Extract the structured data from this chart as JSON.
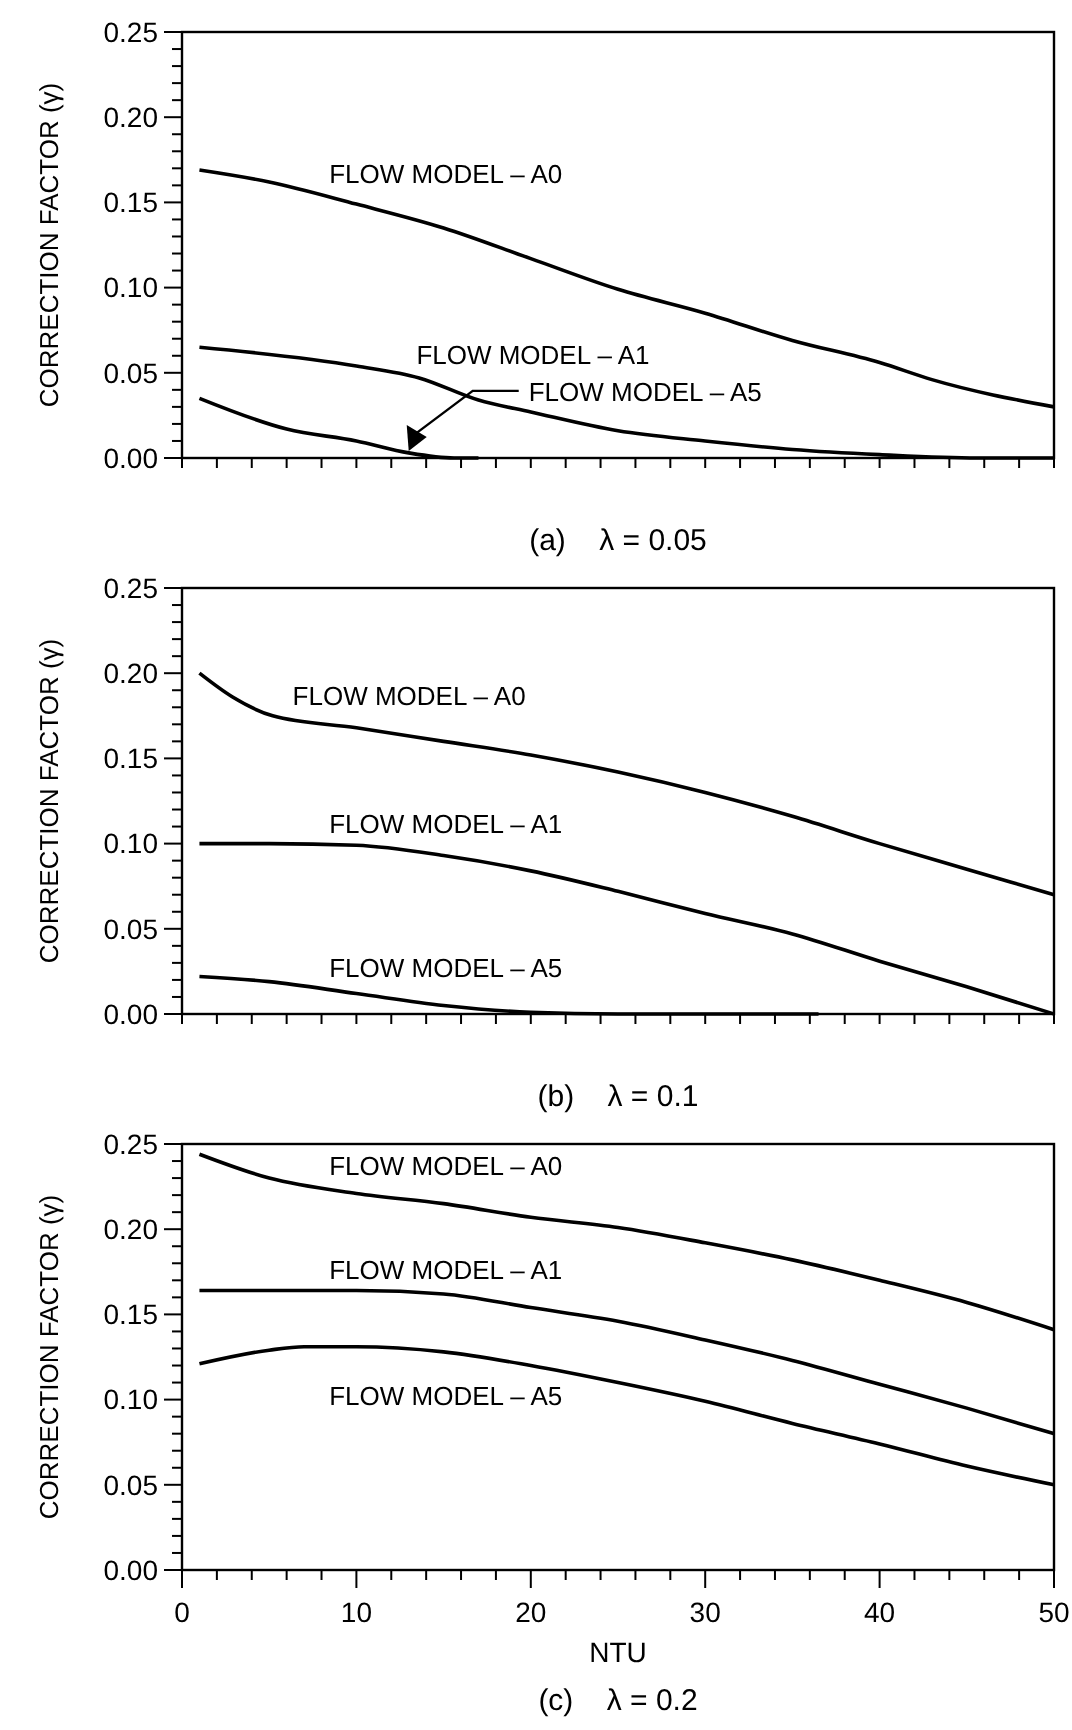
{
  "chart_data": [
    {
      "type": "line",
      "title": "(a)    λ = 0.05",
      "ylabel": "CORRECTION FACTOR (γ)",
      "xlim": [
        0,
        50
      ],
      "ylim": [
        0,
        0.25
      ],
      "tick_labels": "y",
      "line_style": "solid",
      "marker": "none",
      "xticks": [
        {
          "value": 0,
          "label": null
        },
        {
          "value": 2,
          "label": null
        },
        {
          "value": 4,
          "label": null
        },
        {
          "value": 6,
          "label": null
        },
        {
          "value": 8,
          "label": null
        },
        {
          "value": 10,
          "label": null
        },
        {
          "value": 12,
          "label": null
        },
        {
          "value": 14,
          "label": null
        },
        {
          "value": 16,
          "label": null
        },
        {
          "value": 18,
          "label": null
        },
        {
          "value": 20,
          "label": null
        },
        {
          "value": 22,
          "label": null
        },
        {
          "value": 24,
          "label": null
        },
        {
          "value": 26,
          "label": null
        },
        {
          "value": 28,
          "label": null
        },
        {
          "value": 30,
          "label": null
        },
        {
          "value": 32,
          "label": null
        },
        {
          "value": 34,
          "label": null
        },
        {
          "value": 36,
          "label": null
        },
        {
          "value": 38,
          "label": null
        },
        {
          "value": 40,
          "label": null
        },
        {
          "value": 42,
          "label": null
        },
        {
          "value": 44,
          "label": null
        },
        {
          "value": 46,
          "label": null
        },
        {
          "value": 48,
          "label": null
        },
        {
          "value": 50,
          "label": null
        }
      ],
      "yticks": [
        {
          "value": 0,
          "label": "0.00"
        },
        {
          "value": 0.01,
          "label": null
        },
        {
          "value": 0.02,
          "label": null
        },
        {
          "value": 0.03,
          "label": null
        },
        {
          "value": 0.04,
          "label": null
        },
        {
          "value": 0.05,
          "label": "0.05"
        },
        {
          "value": 0.06,
          "label": null
        },
        {
          "value": 0.07,
          "label": null
        },
        {
          "value": 0.08,
          "label": null
        },
        {
          "value": 0.09,
          "label": null
        },
        {
          "value": 0.1,
          "label": "0.10"
        },
        {
          "value": 0.11,
          "label": null
        },
        {
          "value": 0.12,
          "label": null
        },
        {
          "value": 0.13,
          "label": null
        },
        {
          "value": 0.14,
          "label": null
        },
        {
          "value": 0.15,
          "label": "0.15"
        },
        {
          "value": 0.16,
          "label": null
        },
        {
          "value": 0.17,
          "label": null
        },
        {
          "value": 0.18,
          "label": null
        },
        {
          "value": 0.19,
          "label": null
        },
        {
          "value": 0.2,
          "label": "0.20"
        },
        {
          "value": 0.21,
          "label": null
        },
        {
          "value": 0.22,
          "label": null
        },
        {
          "value": 0.23,
          "label": null
        },
        {
          "value": 0.24,
          "label": null
        },
        {
          "value": 0.25,
          "label": "0.25"
        }
      ],
      "series": [
        {
          "name": "FLOW MODEL – A0",
          "color": "#000000",
          "x": [
            1,
            5,
            10,
            15,
            20,
            25,
            30,
            35,
            40,
            43,
            50
          ],
          "values": [
            0.169,
            0.162,
            0.149,
            0.135,
            0.117,
            0.099,
            0.085,
            0.069,
            0.056,
            0.046,
            0.03
          ]
        },
        {
          "name": "FLOW MODEL – A1",
          "color": "#000000",
          "x": [
            1,
            10,
            13.6,
            17,
            20,
            25,
            30,
            35,
            40,
            45.6,
            50
          ],
          "values": [
            0.065,
            0.054,
            0.047,
            0.034,
            0.027,
            0.016,
            0.01,
            0.005,
            0.002,
            0,
            0
          ]
        },
        {
          "name": "FLOW MODEL – A5",
          "color": "#000000",
          "x": [
            1,
            6,
            10,
            13,
            15.6,
            17
          ],
          "values": [
            0.035,
            0.017,
            0.01,
            0.003,
            0,
            0
          ]
        }
      ]
    },
    {
      "type": "line",
      "title": "(b)    λ = 0.1",
      "ylabel": "CORRECTION FACTOR (γ)",
      "xlim": [
        0,
        50
      ],
      "ylim": [
        0,
        0.25
      ],
      "tick_labels": "y",
      "line_style": "solid",
      "marker": "none",
      "xticks": [
        {
          "value": 0,
          "label": null
        },
        {
          "value": 2,
          "label": null
        },
        {
          "value": 4,
          "label": null
        },
        {
          "value": 6,
          "label": null
        },
        {
          "value": 8,
          "label": null
        },
        {
          "value": 10,
          "label": null
        },
        {
          "value": 12,
          "label": null
        },
        {
          "value": 14,
          "label": null
        },
        {
          "value": 16,
          "label": null
        },
        {
          "value": 18,
          "label": null
        },
        {
          "value": 20,
          "label": null
        },
        {
          "value": 22,
          "label": null
        },
        {
          "value": 24,
          "label": null
        },
        {
          "value": 26,
          "label": null
        },
        {
          "value": 28,
          "label": null
        },
        {
          "value": 30,
          "label": null
        },
        {
          "value": 32,
          "label": null
        },
        {
          "value": 34,
          "label": null
        },
        {
          "value": 36,
          "label": null
        },
        {
          "value": 38,
          "label": null
        },
        {
          "value": 40,
          "label": null
        },
        {
          "value": 42,
          "label": null
        },
        {
          "value": 44,
          "label": null
        },
        {
          "value": 46,
          "label": null
        },
        {
          "value": 48,
          "label": null
        },
        {
          "value": 50,
          "label": null
        }
      ],
      "yticks": [
        {
          "value": 0,
          "label": "0.00"
        },
        {
          "value": 0.01,
          "label": null
        },
        {
          "value": 0.02,
          "label": null
        },
        {
          "value": 0.03,
          "label": null
        },
        {
          "value": 0.04,
          "label": null
        },
        {
          "value": 0.05,
          "label": "0.05"
        },
        {
          "value": 0.06,
          "label": null
        },
        {
          "value": 0.07,
          "label": null
        },
        {
          "value": 0.08,
          "label": null
        },
        {
          "value": 0.09,
          "label": null
        },
        {
          "value": 0.1,
          "label": "0.10"
        },
        {
          "value": 0.11,
          "label": null
        },
        {
          "value": 0.12,
          "label": null
        },
        {
          "value": 0.13,
          "label": null
        },
        {
          "value": 0.14,
          "label": null
        },
        {
          "value": 0.15,
          "label": "0.15"
        },
        {
          "value": 0.16,
          "label": null
        },
        {
          "value": 0.17,
          "label": null
        },
        {
          "value": 0.18,
          "label": null
        },
        {
          "value": 0.19,
          "label": null
        },
        {
          "value": 0.2,
          "label": "0.20"
        },
        {
          "value": 0.21,
          "label": null
        },
        {
          "value": 0.22,
          "label": null
        },
        {
          "value": 0.23,
          "label": null
        },
        {
          "value": 0.24,
          "label": null
        },
        {
          "value": 0.25,
          "label": "0.25"
        }
      ],
      "series": [
        {
          "name": "FLOW MODEL – A0",
          "color": "#000000",
          "x": [
            1,
            2.9,
            5.2,
            10,
            15,
            20,
            25,
            30,
            35,
            40,
            45,
            50
          ],
          "values": [
            0.2,
            0.186,
            0.175,
            0.168,
            0.16,
            0.152,
            0.142,
            0.13,
            0.116,
            0.1,
            0.085,
            0.07
          ]
        },
        {
          "name": "FLOW MODEL – A1",
          "color": "#000000",
          "x": [
            1,
            5,
            10,
            15,
            20,
            25,
            30,
            35,
            40,
            45,
            50
          ],
          "values": [
            0.1,
            0.1,
            0.099,
            0.093,
            0.084,
            0.072,
            0.059,
            0.047,
            0.031,
            0.016,
            0
          ]
        },
        {
          "name": "FLOW MODEL – A5",
          "color": "#000000",
          "x": [
            1,
            5,
            10,
            15,
            20,
            25,
            30,
            36.5
          ],
          "values": [
            0.022,
            0.019,
            0.012,
            0.005,
            0.001,
            0,
            0,
            0
          ]
        }
      ]
    },
    {
      "type": "line",
      "title": "(c)    λ = 0.2",
      "xlabel": "NTU",
      "ylabel": "CORRECTION FACTOR (γ)",
      "xlim": [
        0,
        50
      ],
      "ylim": [
        0,
        0.25
      ],
      "line_style": "solid",
      "marker": "none",
      "xticks": [
        {
          "value": 0,
          "label": "0"
        },
        {
          "value": 2,
          "label": null
        },
        {
          "value": 4,
          "label": null
        },
        {
          "value": 6,
          "label": null
        },
        {
          "value": 8,
          "label": null
        },
        {
          "value": 10,
          "label": "10"
        },
        {
          "value": 12,
          "label": null
        },
        {
          "value": 14,
          "label": null
        },
        {
          "value": 16,
          "label": null
        },
        {
          "value": 18,
          "label": null
        },
        {
          "value": 20,
          "label": "20"
        },
        {
          "value": 22,
          "label": null
        },
        {
          "value": 24,
          "label": null
        },
        {
          "value": 26,
          "label": null
        },
        {
          "value": 28,
          "label": null
        },
        {
          "value": 30,
          "label": "30"
        },
        {
          "value": 32,
          "label": null
        },
        {
          "value": 34,
          "label": null
        },
        {
          "value": 36,
          "label": null
        },
        {
          "value": 38,
          "label": null
        },
        {
          "value": 40,
          "label": "40"
        },
        {
          "value": 42,
          "label": null
        },
        {
          "value": 44,
          "label": null
        },
        {
          "value": 46,
          "label": null
        },
        {
          "value": 48,
          "label": null
        },
        {
          "value": 50,
          "label": "50"
        }
      ],
      "yticks": [
        {
          "value": 0,
          "label": "0.00"
        },
        {
          "value": 0.01,
          "label": null
        },
        {
          "value": 0.02,
          "label": null
        },
        {
          "value": 0.03,
          "label": null
        },
        {
          "value": 0.04,
          "label": null
        },
        {
          "value": 0.05,
          "label": "0.05"
        },
        {
          "value": 0.06,
          "label": null
        },
        {
          "value": 0.07,
          "label": null
        },
        {
          "value": 0.08,
          "label": null
        },
        {
          "value": 0.09,
          "label": null
        },
        {
          "value": 0.1,
          "label": "0.10"
        },
        {
          "value": 0.11,
          "label": null
        },
        {
          "value": 0.12,
          "label": null
        },
        {
          "value": 0.13,
          "label": null
        },
        {
          "value": 0.14,
          "label": null
        },
        {
          "value": 0.15,
          "label": "0.15"
        },
        {
          "value": 0.16,
          "label": null
        },
        {
          "value": 0.17,
          "label": null
        },
        {
          "value": 0.18,
          "label": null
        },
        {
          "value": 0.19,
          "label": null
        },
        {
          "value": 0.2,
          "label": "0.20"
        },
        {
          "value": 0.21,
          "label": null
        },
        {
          "value": 0.22,
          "label": null
        },
        {
          "value": 0.23,
          "label": null
        },
        {
          "value": 0.24,
          "label": null
        },
        {
          "value": 0.25,
          "label": "0.25"
        }
      ],
      "series": [
        {
          "name": "FLOW MODEL – A0",
          "color": "#000000",
          "x": [
            1,
            5,
            10,
            15,
            20,
            25,
            30,
            35,
            40,
            45,
            50
          ],
          "values": [
            0.244,
            0.23,
            0.221,
            0.215,
            0.207,
            0.201,
            0.192,
            0.182,
            0.17,
            0.157,
            0.141
          ]
        },
        {
          "name": "FLOW MODEL – A1",
          "color": "#000000",
          "x": [
            1,
            5,
            10,
            15,
            20,
            25,
            30,
            35,
            40,
            45,
            50
          ],
          "values": [
            0.164,
            0.164,
            0.164,
            0.162,
            0.154,
            0.146,
            0.135,
            0.123,
            0.109,
            0.095,
            0.08
          ]
        },
        {
          "name": "FLOW MODEL – A5",
          "color": "#000000",
          "x": [
            1,
            5,
            7,
            10,
            15,
            20,
            25,
            30,
            35,
            40,
            45,
            50
          ],
          "values": [
            0.121,
            0.129,
            0.131,
            0.131,
            0.128,
            0.12,
            0.11,
            0.099,
            0.086,
            0.074,
            0.061,
            0.05
          ]
        }
      ]
    }
  ]
}
